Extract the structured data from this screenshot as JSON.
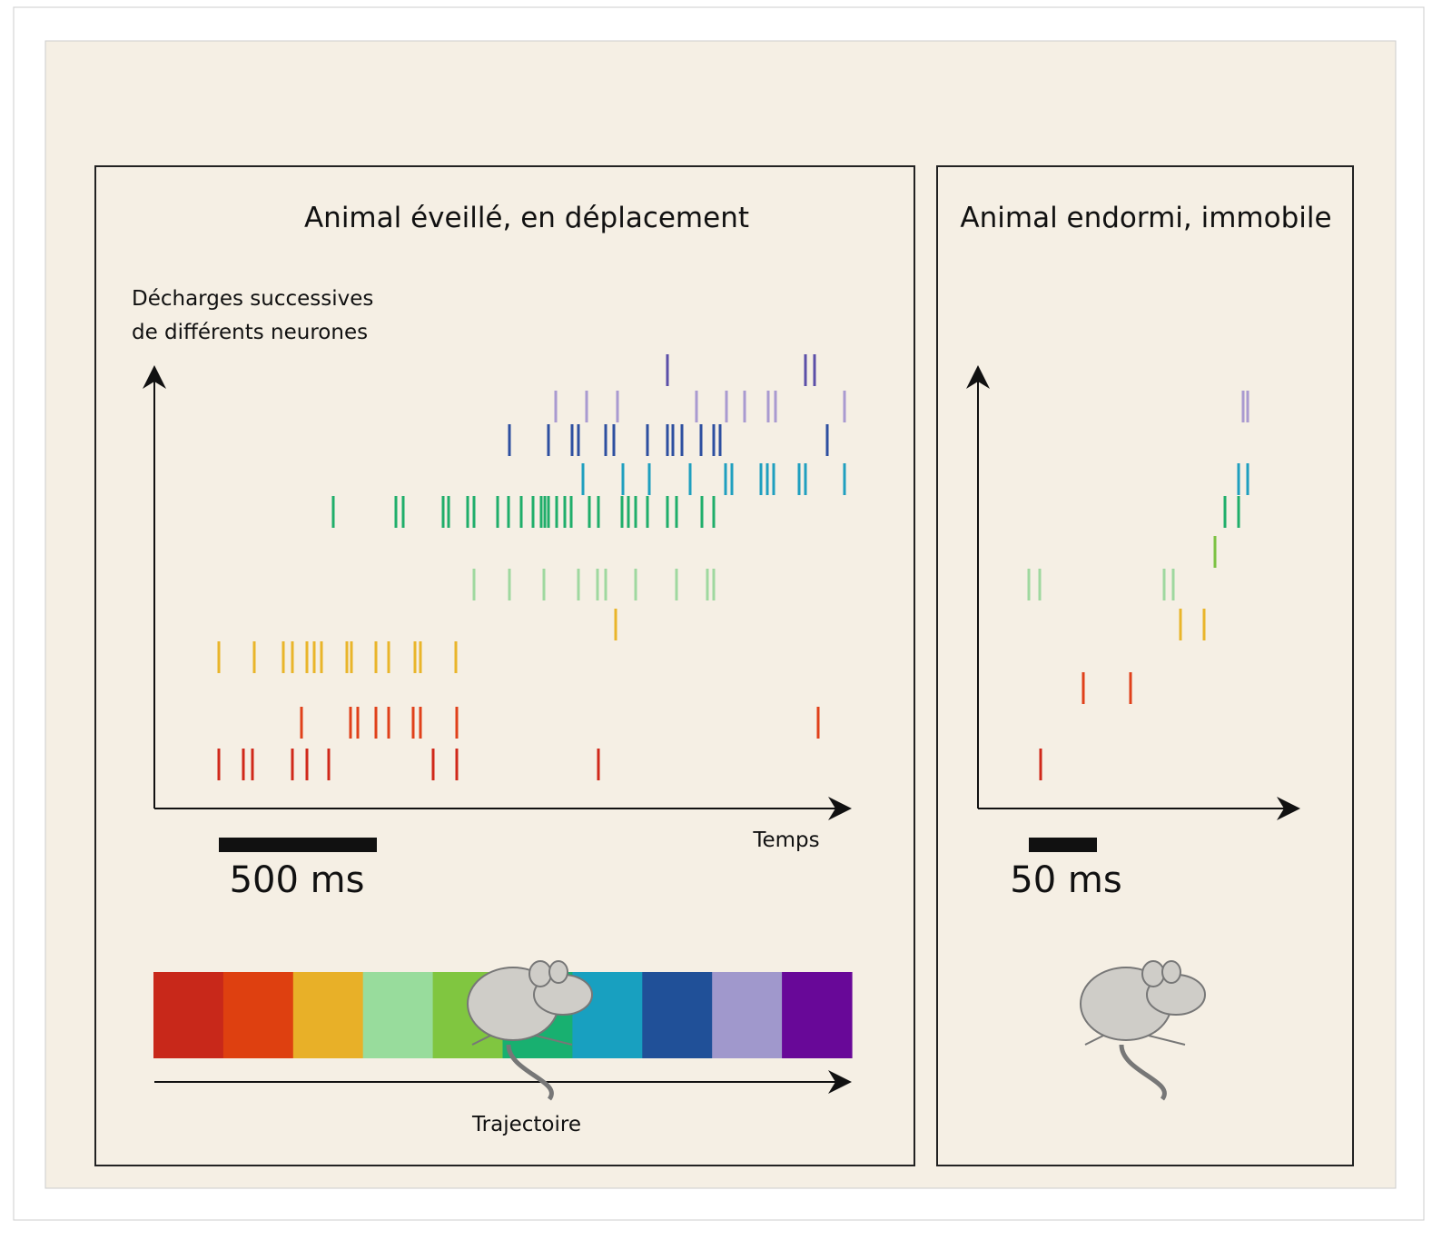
{
  "panels": [
    {
      "title": "Animal éveillé, en déplacement",
      "y_axis_label": [
        "Décharges successives",
        "de différents neurones"
      ],
      "x_axis_label": "Temps",
      "scale_bar": "500 ms",
      "trajectory_label": "Trajectoire"
    },
    {
      "title": "Animal endormi, immobile",
      "scale_bar": "50 ms"
    }
  ]
}
